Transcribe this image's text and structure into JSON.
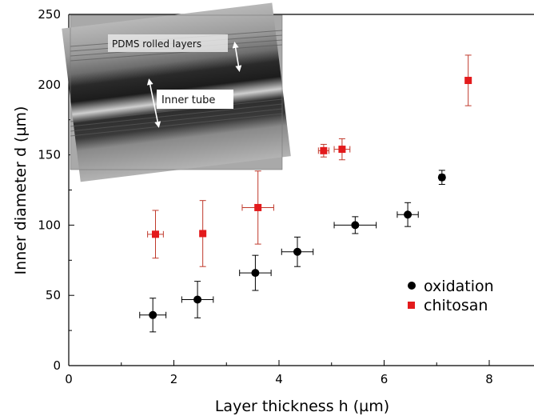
{
  "chart_data": {
    "type": "scatter",
    "xlabel": "Layer thickness h (µm)",
    "ylabel": "Inner diameter d (µm)",
    "xlim": [
      0,
      9
    ],
    "ylim": [
      0,
      250
    ],
    "xticks": [
      0,
      2,
      4,
      6,
      8
    ],
    "yticks": [
      0,
      50,
      100,
      150,
      200,
      250
    ],
    "legend_position": "center-right",
    "grid": false,
    "series": [
      {
        "name": "oxidation",
        "marker": "circle",
        "color": "#000000",
        "points": [
          {
            "x": 1.6,
            "y": 36,
            "yerr": 12,
            "xerr": 0.25
          },
          {
            "x": 2.45,
            "y": 47,
            "yerr": 13,
            "xerr": 0.3
          },
          {
            "x": 3.55,
            "y": 66,
            "yerr": 12.5,
            "xerr": 0.3
          },
          {
            "x": 4.35,
            "y": 81,
            "yerr": 10.5,
            "xerr": 0.3
          },
          {
            "x": 5.45,
            "y": 100,
            "yerr": 6,
            "xerr": 0.4
          },
          {
            "x": 6.45,
            "y": 107.5,
            "yerr": 8.5,
            "xerr": 0.2
          },
          {
            "x": 7.1,
            "y": 134,
            "yerr": 5,
            "xerr": 0.05
          }
        ]
      },
      {
        "name": "chitosan",
        "marker": "square",
        "color": "#e31a1c",
        "points": [
          {
            "x": 1.65,
            "y": 93.5,
            "yerr": 17,
            "xerr": 0.15
          },
          {
            "x": 2.55,
            "y": 94,
            "yerr": 23.5,
            "xerr": 0.05
          },
          {
            "x": 3.6,
            "y": 112.5,
            "yerr": 26,
            "xerr": 0.3
          },
          {
            "x": 4.85,
            "y": 153,
            "yerr": 4.5,
            "xerr": 0.1
          },
          {
            "x": 5.2,
            "y": 154,
            "yerr": 7.5,
            "xerr": 0.15
          },
          {
            "x": 7.6,
            "y": 203,
            "yerr": 18,
            "xerr": 0.05
          }
        ]
      }
    ]
  },
  "inset": {
    "label_rolled_layers": "PDMS rolled layers",
    "label_inner_tube": "Inner tube"
  }
}
